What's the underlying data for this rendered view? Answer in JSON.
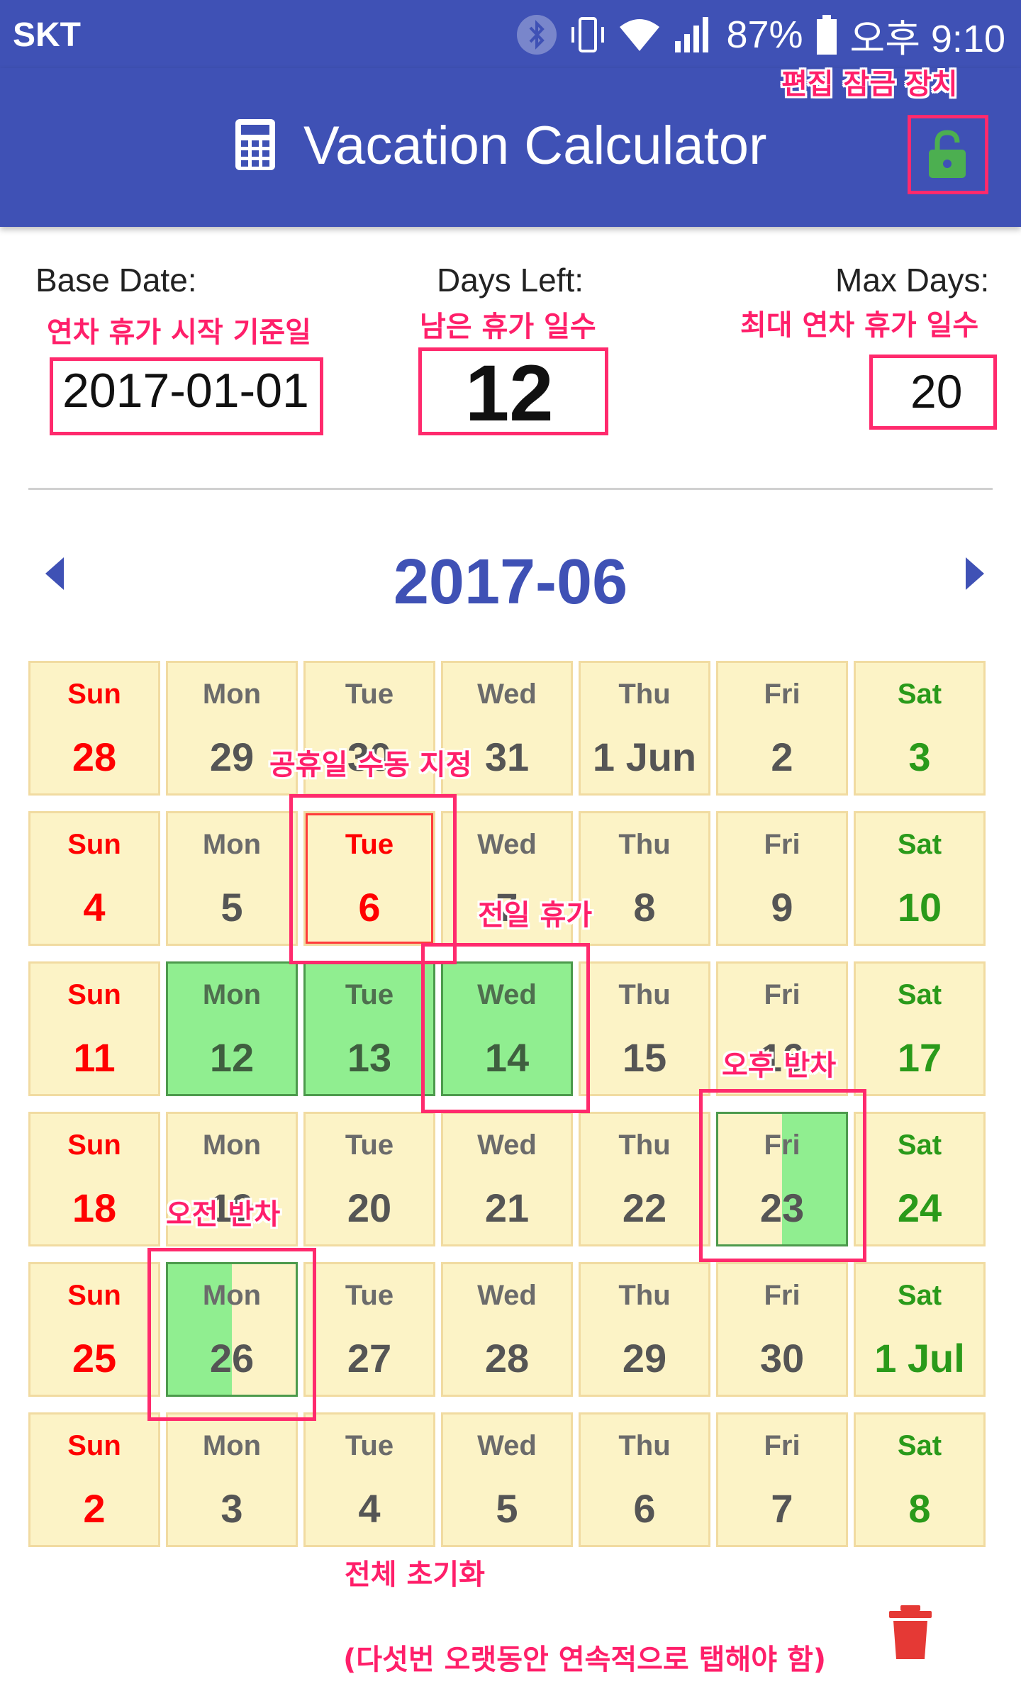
{
  "status_bar": {
    "carrier": "SKT",
    "battery": "87%",
    "time": "오후 9:10"
  },
  "app": {
    "title": "Vacation Calculator",
    "icons": {
      "title": "calculator-icon",
      "lock": "lock-open-icon"
    }
  },
  "fields": {
    "base_date": {
      "label": "Base Date:",
      "value": "2017-01-01"
    },
    "days_left": {
      "label": "Days Left:",
      "value": "12"
    },
    "max_days": {
      "label": "Max Days:",
      "value": "20"
    }
  },
  "calendar": {
    "month": "2017-06",
    "weeks": [
      [
        {
          "dow": "Sun",
          "day": "28",
          "type": "sun"
        },
        {
          "dow": "Mon",
          "day": "29",
          "type": ""
        },
        {
          "dow": "Tue",
          "day": "30",
          "type": ""
        },
        {
          "dow": "Wed",
          "day": "31",
          "type": ""
        },
        {
          "dow": "Thu",
          "day": "1 Jun",
          "type": ""
        },
        {
          "dow": "Fri",
          "day": "2",
          "type": ""
        },
        {
          "dow": "Sat",
          "day": "3",
          "type": "sat"
        }
      ],
      [
        {
          "dow": "Sun",
          "day": "4",
          "type": "sun"
        },
        {
          "dow": "Mon",
          "day": "5",
          "type": ""
        },
        {
          "dow": "Tue",
          "day": "6",
          "type": "holiday"
        },
        {
          "dow": "Wed",
          "day": "7",
          "type": ""
        },
        {
          "dow": "Thu",
          "day": "8",
          "type": ""
        },
        {
          "dow": "Fri",
          "day": "9",
          "type": ""
        },
        {
          "dow": "Sat",
          "day": "10",
          "type": "sat"
        }
      ],
      [
        {
          "dow": "Sun",
          "day": "11",
          "type": "sun"
        },
        {
          "dow": "Mon",
          "day": "12",
          "type": "full"
        },
        {
          "dow": "Tue",
          "day": "13",
          "type": "full"
        },
        {
          "dow": "Wed",
          "day": "14",
          "type": "full"
        },
        {
          "dow": "Thu",
          "day": "15",
          "type": ""
        },
        {
          "dow": "Fri",
          "day": "16",
          "type": ""
        },
        {
          "dow": "Sat",
          "day": "17",
          "type": "sat"
        }
      ],
      [
        {
          "dow": "Sun",
          "day": "18",
          "type": "sun"
        },
        {
          "dow": "Mon",
          "day": "19",
          "type": ""
        },
        {
          "dow": "Tue",
          "day": "20",
          "type": ""
        },
        {
          "dow": "Wed",
          "day": "21",
          "type": ""
        },
        {
          "dow": "Thu",
          "day": "22",
          "type": ""
        },
        {
          "dow": "Fri",
          "day": "23",
          "type": "pm"
        },
        {
          "dow": "Sat",
          "day": "24",
          "type": "sat"
        }
      ],
      [
        {
          "dow": "Sun",
          "day": "25",
          "type": "sun"
        },
        {
          "dow": "Mon",
          "day": "26",
          "type": "am"
        },
        {
          "dow": "Tue",
          "day": "27",
          "type": ""
        },
        {
          "dow": "Wed",
          "day": "28",
          "type": ""
        },
        {
          "dow": "Thu",
          "day": "29",
          "type": ""
        },
        {
          "dow": "Fri",
          "day": "30",
          "type": ""
        },
        {
          "dow": "Sat",
          "day": "1 Jul",
          "type": "sat"
        }
      ],
      [
        {
          "dow": "Sun",
          "day": "2",
          "type": "sun"
        },
        {
          "dow": "Mon",
          "day": "3",
          "type": ""
        },
        {
          "dow": "Tue",
          "day": "4",
          "type": ""
        },
        {
          "dow": "Wed",
          "day": "5",
          "type": ""
        },
        {
          "dow": "Thu",
          "day": "6",
          "type": ""
        },
        {
          "dow": "Fri",
          "day": "7",
          "type": ""
        },
        {
          "dow": "Sat",
          "day": "8",
          "type": "sat"
        }
      ]
    ]
  },
  "annotations": {
    "lock": "편집 잠금 장치",
    "base_date": "연차 휴가 시작 기준일",
    "days_left": "남은 휴가 일수",
    "max_days": "최대 연차 휴가 일수",
    "holiday": "공휴일 수동 지정",
    "full_day": "전일 휴가",
    "pm_half": "오후 반차",
    "am_half": "오전 반차",
    "reset": "전체 초기화",
    "reset_hint": "(다섯번 오랫동안 연속적으로 탭해야 함)"
  },
  "colors": {
    "primary": "#3f51b5",
    "cell_bg": "#fcf3c6",
    "vacation": "#90ee90",
    "sunday": "#ff0000",
    "saturday": "#2a9a1a",
    "annotation": "#ff2a6d",
    "lock": "#4caf50",
    "trash": "#e53935"
  }
}
